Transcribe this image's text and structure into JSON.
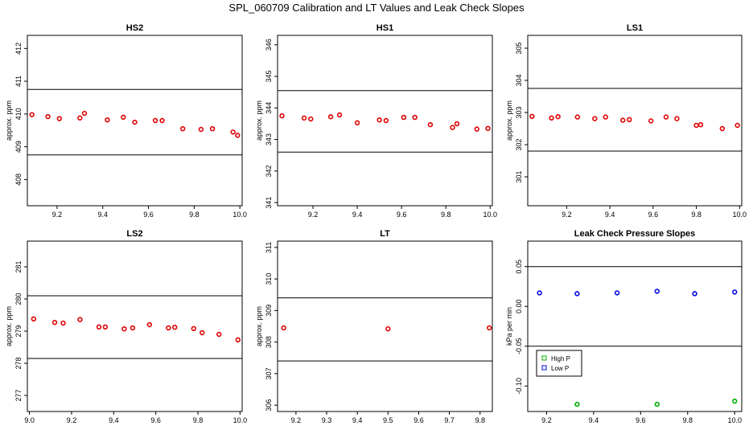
{
  "figure": {
    "title": "SPL_060709  Calibration and LT Values and Leak Check Slopes"
  },
  "chart_data": [
    {
      "type": "scatter",
      "title": "HS2",
      "ylabel": "approx. ppm",
      "xlim": [
        9.07,
        10.01
      ],
      "ylim": [
        407.2,
        412.4
      ],
      "xticks": [
        9.2,
        9.4,
        9.6,
        9.8,
        10.0
      ],
      "xtick_labels": [
        "9.2",
        "9.4",
        "9.6",
        "9.8",
        "10.0"
      ],
      "yticks": [
        408,
        409,
        410,
        411,
        412
      ],
      "ytick_labels": [
        "408",
        "409",
        "410",
        "411",
        "412"
      ],
      "hlines": [
        408.75,
        410.75
      ],
      "series": [
        {
          "color": "#e00000",
          "x": [
            9.09,
            9.16,
            9.21,
            9.3,
            9.32,
            9.42,
            9.49,
            9.54,
            9.63,
            9.66,
            9.75,
            9.83,
            9.88,
            9.97,
            9.99
          ],
          "y": [
            409.98,
            409.92,
            409.86,
            409.88,
            410.02,
            409.82,
            409.9,
            409.75,
            409.8,
            409.8,
            409.55,
            409.53,
            409.55,
            409.45,
            409.35
          ]
        }
      ]
    },
    {
      "type": "scatter",
      "title": "HS1",
      "ylabel": "approx. ppm",
      "xlim": [
        9.04,
        10.01
      ],
      "ylim": [
        340.9,
        346.3
      ],
      "xticks": [
        9.2,
        9.4,
        9.6,
        9.8,
        10.0
      ],
      "xtick_labels": [
        "9.2",
        "9.4",
        "9.6",
        "9.8",
        "10.0"
      ],
      "yticks": [
        341,
        342,
        343,
        344,
        345,
        346
      ],
      "ytick_labels": [
        "341",
        "342",
        "343",
        "344",
        "345",
        "346"
      ],
      "hlines": [
        342.6,
        344.55
      ],
      "series": [
        {
          "color": "#e00000",
          "x": [
            9.06,
            9.16,
            9.19,
            9.28,
            9.32,
            9.4,
            9.5,
            9.53,
            9.61,
            9.66,
            9.73,
            9.83,
            9.85,
            9.94,
            9.99
          ],
          "y": [
            343.75,
            343.68,
            343.65,
            343.72,
            343.78,
            343.53,
            343.62,
            343.6,
            343.7,
            343.7,
            343.47,
            343.38,
            343.5,
            343.33,
            343.35
          ]
        }
      ]
    },
    {
      "type": "scatter",
      "title": "LS1",
      "ylabel": "approx. ppm",
      "xlim": [
        9.02,
        10.01
      ],
      "ylim": [
        300.1,
        305.4
      ],
      "xticks": [
        9.2,
        9.4,
        9.6,
        9.8,
        10.0
      ],
      "xtick_labels": [
        "9.2",
        "9.4",
        "9.6",
        "9.8",
        "10.0"
      ],
      "yticks": [
        301,
        302,
        303,
        304,
        305
      ],
      "ytick_labels": [
        "301",
        "302",
        "303",
        "304",
        "305"
      ],
      "hlines": [
        301.8,
        303.75
      ],
      "series": [
        {
          "color": "#e00000",
          "x": [
            9.04,
            9.13,
            9.16,
            9.25,
            9.33,
            9.38,
            9.46,
            9.49,
            9.59,
            9.66,
            9.71,
            9.8,
            9.82,
            9.92,
            9.99
          ],
          "y": [
            302.88,
            302.83,
            302.87,
            302.86,
            302.81,
            302.86,
            302.76,
            302.78,
            302.74,
            302.86,
            302.81,
            302.6,
            302.62,
            302.5,
            302.6
          ]
        }
      ]
    },
    {
      "type": "scatter",
      "title": "LS2",
      "ylabel": "approx. ppm",
      "xlim": [
        8.99,
        10.01
      ],
      "ylim": [
        276.5,
        281.8
      ],
      "xticks": [
        9.0,
        9.2,
        9.4,
        9.6,
        9.8,
        10.0
      ],
      "xtick_labels": [
        "9.0",
        "9.2",
        "9.4",
        "9.6",
        "9.8",
        "10.0"
      ],
      "yticks": [
        277,
        278,
        279,
        280,
        281
      ],
      "ytick_labels": [
        "277",
        "278",
        "279",
        "280",
        "281"
      ],
      "hlines": [
        278.15,
        280.1
      ],
      "series": [
        {
          "color": "#e00000",
          "x": [
            9.02,
            9.12,
            9.16,
            9.24,
            9.33,
            9.36,
            9.45,
            9.49,
            9.57,
            9.66,
            9.69,
            9.78,
            9.82,
            9.9,
            9.99
          ],
          "y": [
            279.38,
            279.27,
            279.25,
            279.36,
            279.13,
            279.13,
            279.07,
            279.1,
            279.2,
            279.1,
            279.12,
            279.08,
            278.95,
            278.9,
            278.73
          ]
        }
      ]
    },
    {
      "type": "scatter",
      "title": "LT",
      "ylabel": "approx. ppm",
      "xlim": [
        9.14,
        9.84
      ],
      "ylim": [
        305.8,
        311.2
      ],
      "xticks": [
        9.2,
        9.3,
        9.4,
        9.5,
        9.6,
        9.7,
        9.8
      ],
      "xtick_labels": [
        "9.2",
        "9.3",
        "9.4",
        "9.5",
        "9.6",
        "9.7",
        "9.8"
      ],
      "yticks": [
        306,
        307,
        308,
        309,
        310,
        311
      ],
      "ytick_labels": [
        "306",
        "307",
        "308",
        "309",
        "310",
        "311"
      ],
      "hlines": [
        307.4,
        309.4
      ],
      "series": [
        {
          "color": "#e00000",
          "x": [
            9.16,
            9.5,
            9.83
          ],
          "y": [
            308.45,
            308.42,
            308.45
          ]
        }
      ]
    },
    {
      "type": "scatter",
      "title": "Leak Check Pressure Slopes",
      "ylabel": "kPa per min",
      "xlim": [
        9.12,
        10.03
      ],
      "ylim": [
        -0.132,
        0.082
      ],
      "xticks": [
        9.2,
        9.4,
        9.6,
        9.8,
        10.0
      ],
      "xtick_labels": [
        "9.2",
        "9.4",
        "9.6",
        "9.8",
        "10.0"
      ],
      "yticks": [
        -0.1,
        -0.05,
        0.0,
        0.05
      ],
      "ytick_labels": [
        "-0.10",
        "-0.05",
        "0.00",
        "0.05"
      ],
      "hlines": [
        -0.05,
        0.05
      ],
      "legend": "inside left, lower-middle",
      "series": [
        {
          "name": "High P",
          "color": "#00b000",
          "x": [
            9.33,
            9.67,
            10.0
          ],
          "y": [
            -0.123,
            -0.123,
            -0.119
          ]
        },
        {
          "name": "Low P",
          "color": "#0000e0",
          "x": [
            9.17,
            9.33,
            9.5,
            9.67,
            9.83,
            10.0
          ],
          "y": [
            0.017,
            0.016,
            0.017,
            0.019,
            0.016,
            0.018
          ]
        }
      ]
    }
  ]
}
